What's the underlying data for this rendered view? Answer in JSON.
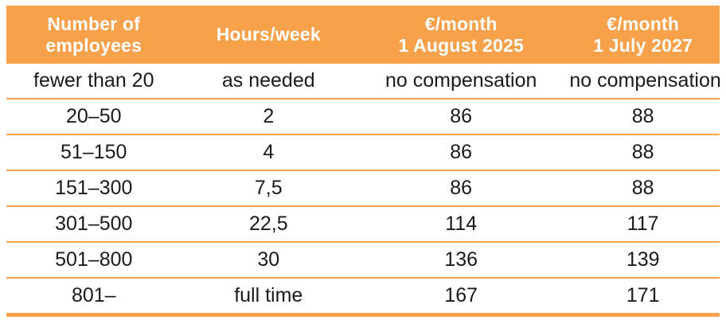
{
  "colors": {
    "accent": "#F8A14B",
    "header_text": "#FFFFFF",
    "body_text": "#1A1A1A",
    "page_bg": "#FFFFFF"
  },
  "table": {
    "columns": [
      {
        "lines": [
          "Number of",
          "employees"
        ]
      },
      {
        "lines": [
          "Hours/week"
        ]
      },
      {
        "lines": [
          "€/month",
          "1 August 2025"
        ]
      },
      {
        "lines": [
          "€/month",
          "1 July 2027"
        ]
      }
    ],
    "rows": [
      {
        "employees": "fewer than 20",
        "hours": "as needed",
        "aug2025": "no compensation",
        "jul2027": "no compensation"
      },
      {
        "employees": "20–50",
        "hours": "2",
        "aug2025": "86",
        "jul2027": "88"
      },
      {
        "employees": "51–150",
        "hours": "4",
        "aug2025": "86",
        "jul2027": "88"
      },
      {
        "employees": "151–300",
        "hours": "7,5",
        "aug2025": "86",
        "jul2027": "88"
      },
      {
        "employees": "301–500",
        "hours": "22,5",
        "aug2025": "114",
        "jul2027": "117"
      },
      {
        "employees": "501–800",
        "hours": "30",
        "aug2025": "136",
        "jul2027": "139"
      },
      {
        "employees": "801–",
        "hours": "full time",
        "aug2025": "167",
        "jul2027": "171"
      }
    ]
  }
}
